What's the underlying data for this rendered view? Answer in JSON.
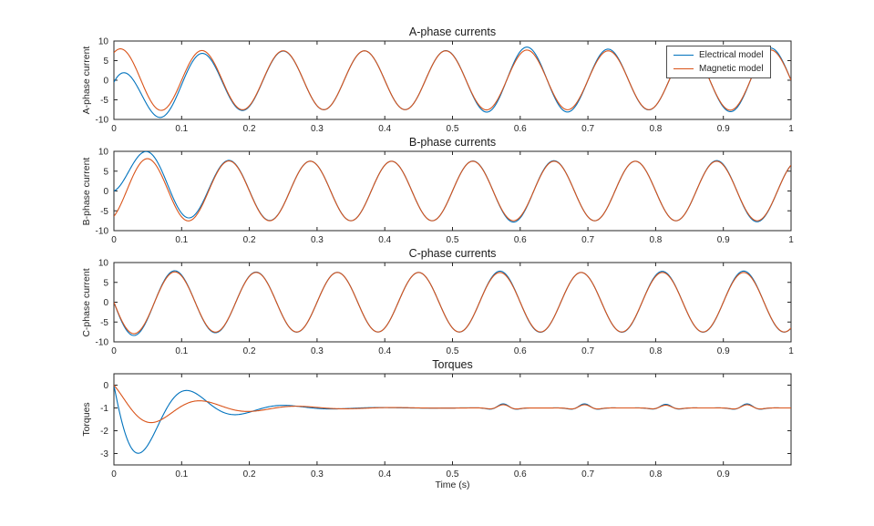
{
  "figure": {
    "background": "#ffffff",
    "axis_color": "#262626",
    "electrical_color": "#0072BD",
    "magnetic_color": "#D95319"
  },
  "xlabel": "Time (s)",
  "legend": {
    "entries": [
      {
        "label": "Electrical model",
        "color": "#0072BD"
      },
      {
        "label": "Magnetic model",
        "color": "#D95319"
      }
    ]
  },
  "chart_data": [
    {
      "type": "line",
      "title": "A-phase currents",
      "ylabel": "A-phase current",
      "xlim": [
        0,
        1
      ],
      "ylim": [
        -10,
        10
      ],
      "xticks": [
        0,
        0.1,
        0.2,
        0.3,
        0.4,
        0.5,
        0.6,
        0.7,
        0.8,
        0.9,
        1
      ],
      "xtick_labels": [
        "0",
        "0.1",
        "0.2",
        "0.3",
        "0.4",
        "0.5",
        "0.6",
        "0.7",
        "0.8",
        "0.9",
        "1"
      ],
      "yticks": [
        -10,
        -5,
        0,
        5,
        10
      ],
      "ytick_labels": [
        "-10",
        "-5",
        "0",
        "5",
        "10"
      ],
      "series": [
        {
          "name": "Electrical model",
          "color": "#0072BD",
          "model": "sine",
          "amplitude": 7.5,
          "frequency_hz": 8.3333,
          "phase_deg": 60,
          "dc_transient": {
            "amplitude": -7.0,
            "tau": 0.055
          },
          "bumps": [
            {
              "t": 0.57,
              "width": 0.05,
              "amp": 0.6
            },
            {
              "t": 0.63,
              "width": 0.06,
              "amp": 0.7
            },
            {
              "t": 0.72,
              "width": 0.05,
              "amp": 0.4
            },
            {
              "t": 0.95,
              "width": 0.06,
              "amp": 0.8
            }
          ]
        },
        {
          "name": "Magnetic model",
          "color": "#D95319",
          "model": "sine",
          "amplitude": 7.5,
          "frequency_hz": 8.3333,
          "phase_deg": 60,
          "amp_transient": {
            "amplitude": 0.6,
            "tau": 0.06
          },
          "bumps": [
            {
              "t": 0.6,
              "width": 0.05,
              "amp": 0.2
            },
            {
              "t": 0.95,
              "width": 0.05,
              "amp": 0.25
            }
          ]
        }
      ]
    },
    {
      "type": "line",
      "title": "B-phase currents",
      "ylabel": "B-phase current",
      "xlim": [
        0,
        1
      ],
      "ylim": [
        -10,
        10
      ],
      "xticks": [
        0,
        0.1,
        0.2,
        0.3,
        0.4,
        0.5,
        0.6,
        0.7,
        0.8,
        0.9,
        1
      ],
      "xtick_labels": [
        "0",
        "0.1",
        "0.2",
        "0.3",
        "0.4",
        "0.5",
        "0.6",
        "0.7",
        "0.8",
        "0.9",
        "1"
      ],
      "yticks": [
        -10,
        -5,
        0,
        5,
        10
      ],
      "ytick_labels": [
        "-10",
        "-5",
        "0",
        "5",
        "10"
      ],
      "series": [
        {
          "name": "Electrical model",
          "color": "#0072BD",
          "model": "sine",
          "amplitude": 7.5,
          "frequency_hz": 8.3333,
          "phase_deg": -60,
          "dc_transient": {
            "amplitude": 6.5,
            "tau": 0.05
          },
          "bumps": [
            {
              "t": 0.6,
              "width": 0.05,
              "amp": 0.35
            },
            {
              "t": 0.93,
              "width": 0.05,
              "amp": 0.3
            }
          ]
        },
        {
          "name": "Magnetic model",
          "color": "#D95319",
          "model": "sine",
          "amplitude": 7.5,
          "frequency_hz": 8.3333,
          "phase_deg": -60,
          "dc_transient": {
            "amplitude": 0.8,
            "tau": 0.05
          },
          "amp_transient": {
            "amplitude": 0.8,
            "tau": 0.06
          },
          "bumps": []
        }
      ]
    },
    {
      "type": "line",
      "title": "C-phase currents",
      "ylabel": "C-phase current",
      "xlim": [
        0,
        1
      ],
      "ylim": [
        -10,
        10
      ],
      "xticks": [
        0,
        0.1,
        0.2,
        0.3,
        0.4,
        0.5,
        0.6,
        0.7,
        0.8,
        0.9,
        1
      ],
      "xtick_labels": [
        "0",
        "0.1",
        "0.2",
        "0.3",
        "0.4",
        "0.5",
        "0.6",
        "0.7",
        "0.8",
        "0.9",
        "1"
      ],
      "yticks": [
        -10,
        -5,
        0,
        5,
        10
      ],
      "ytick_labels": [
        "-10",
        "-5",
        "0",
        "5",
        "10"
      ],
      "series": [
        {
          "name": "Electrical model",
          "color": "#0072BD",
          "model": "sine",
          "amplitude": 7.5,
          "frequency_hz": 8.3333,
          "phase_deg": 180,
          "amp_transient": {
            "amplitude": 1.3,
            "tau": 0.08
          },
          "bumps": [
            {
              "t": 0.58,
              "width": 0.04,
              "amp": 0.35
            },
            {
              "t": 0.8,
              "width": 0.04,
              "amp": 0.3
            },
            {
              "t": 0.93,
              "width": 0.04,
              "amp": 0.35
            }
          ]
        },
        {
          "name": "Magnetic model",
          "color": "#D95319",
          "model": "sine",
          "amplitude": 7.5,
          "frequency_hz": 8.3333,
          "phase_deg": 180,
          "amp_transient": {
            "amplitude": 0.8,
            "tau": 0.05
          },
          "bumps": []
        }
      ]
    },
    {
      "type": "line",
      "title": "Torques",
      "ylabel": "Torques",
      "xlim": [
        0,
        1
      ],
      "ylim": [
        -3.5,
        0.5
      ],
      "xticks": [
        0,
        0.1,
        0.2,
        0.3,
        0.4,
        0.5,
        0.6,
        0.7,
        0.8,
        0.9
      ],
      "xtick_labels": [
        "0",
        "0.1",
        "0.2",
        "0.3",
        "0.4",
        "0.5",
        "0.6",
        "0.7",
        "0.8",
        "0.9"
      ],
      "yticks": [
        0,
        -1,
        -2,
        -3
      ],
      "ytick_labels": [
        "0",
        "-1",
        "-2",
        "-3"
      ],
      "series": [
        {
          "name": "Electrical model",
          "color": "#0072BD",
          "model": "damped_osc",
          "steady": -1,
          "osc": {
            "a": 1.0,
            "b": -3.2,
            "freq_hz": 7,
            "tau": 0.075
          },
          "ripples": [
            {
              "t": 0.575,
              "amp": 0.18,
              "width": 0.02,
              "freq_hz": 20
            },
            {
              "t": 0.695,
              "amp": 0.18,
              "width": 0.02,
              "freq_hz": 20
            },
            {
              "t": 0.815,
              "amp": 0.16,
              "width": 0.02,
              "freq_hz": 20
            },
            {
              "t": 0.935,
              "amp": 0.18,
              "width": 0.02,
              "freq_hz": 20
            }
          ]
        },
        {
          "name": "Magnetic model",
          "color": "#D95319",
          "model": "damped_osc",
          "steady": -1,
          "osc": {
            "a": 1.0,
            "b": -0.55,
            "freq_hz": 7,
            "tau": 0.1
          },
          "ripples": [
            {
              "t": 0.575,
              "amp": 0.14,
              "width": 0.02,
              "freq_hz": 20
            },
            {
              "t": 0.695,
              "amp": 0.14,
              "width": 0.02,
              "freq_hz": 20
            },
            {
              "t": 0.815,
              "amp": 0.12,
              "width": 0.02,
              "freq_hz": 20
            },
            {
              "t": 0.935,
              "amp": 0.14,
              "width": 0.02,
              "freq_hz": 20
            }
          ]
        }
      ]
    }
  ]
}
